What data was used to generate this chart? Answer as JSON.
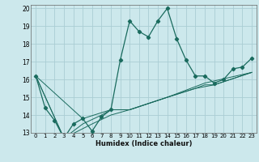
{
  "title": "",
  "xlabel": "Humidex (Indice chaleur)",
  "bg_color": "#cce8ec",
  "grid_color": "#aacdd4",
  "line_color": "#1a6b5e",
  "xlim": [
    -0.5,
    23.5
  ],
  "ylim": [
    13,
    20.2
  ],
  "yticks": [
    13,
    14,
    15,
    16,
    17,
    18,
    19,
    20
  ],
  "xticks": [
    0,
    1,
    2,
    3,
    4,
    5,
    6,
    7,
    8,
    9,
    10,
    11,
    12,
    13,
    14,
    15,
    16,
    17,
    18,
    19,
    20,
    21,
    22,
    23
  ],
  "line_main": {
    "x": [
      0,
      1,
      2,
      3,
      4,
      5,
      6,
      7,
      8,
      9,
      10,
      11,
      12,
      13,
      14,
      15,
      16,
      17,
      18,
      19,
      20,
      21,
      22,
      23
    ],
    "y": [
      16.2,
      14.4,
      13.7,
      12.7,
      13.5,
      13.8,
      13.1,
      13.9,
      14.3,
      17.1,
      19.3,
      18.7,
      18.4,
      19.3,
      20.0,
      18.3,
      17.1,
      16.2,
      16.2,
      15.8,
      16.0,
      16.6,
      16.7,
      17.2
    ]
  },
  "line_aux": [
    {
      "x": [
        0,
        3,
        5,
        7,
        8,
        9,
        10,
        14,
        17,
        18,
        19,
        23
      ],
      "y": [
        16.2,
        12.7,
        13.5,
        14.0,
        14.3,
        14.3,
        14.3,
        15.0,
        15.5,
        15.7,
        15.7,
        16.4
      ]
    },
    {
      "x": [
        0,
        3,
        6,
        8,
        10,
        14,
        17,
        19,
        23
      ],
      "y": [
        16.2,
        12.7,
        13.5,
        14.0,
        14.3,
        15.0,
        15.5,
        15.7,
        16.4
      ]
    },
    {
      "x": [
        0,
        5,
        8,
        10,
        14,
        18,
        23
      ],
      "y": [
        16.2,
        13.8,
        14.3,
        14.3,
        15.0,
        15.8,
        16.4
      ]
    }
  ]
}
